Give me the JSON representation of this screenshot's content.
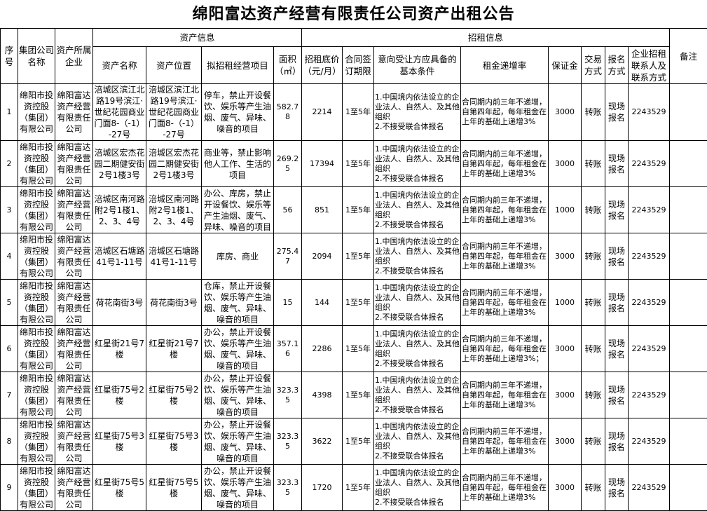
{
  "title": "绵阳富达资产经营有限责任公司资产出租公告",
  "groups": {
    "asset_info": "资产信息",
    "bid_info": "招租信息"
  },
  "headers": {
    "seq": "序号",
    "group_company": "集团公司名称",
    "owner": "资产所属企业",
    "asset_name": "资产名称",
    "asset_location": "资产位置",
    "business": "拟招租经营项目",
    "area": "面积（㎡）",
    "base_price": "招租底价（元/月）",
    "term": "合同签订期限",
    "conditions": "意向受让方应具备的基本条件",
    "increase": "租金递增率",
    "deposit": "保证金",
    "trade": "交易方式",
    "signup": "报名方式",
    "contact": "企业招租联系人及联系方式",
    "remark": "备注"
  },
  "rows": [
    {
      "seq": "1",
      "group_company": "绵阳市投资控股（集团）有限公司",
      "owner": "绵阳富达资产经营有限责任公司",
      "asset_name": "涪城区滨江北路19号滨江·世纪花园商业门面8-（-1）-27号",
      "asset_location": "涪城区滨江北路19号滨江·世纪花园商业门面8-（-1）-27号",
      "business": "停车，禁止开设餐饮、娱乐等产生油烟、废气、异味、噪音的项目",
      "area": "582.78",
      "base_price": "2214",
      "term": "1至5年",
      "conditions": "1.中国境内依法设立的企业法人、自然人、及其他组织\n2.不接受联合体报名",
      "increase": "合同期内前三年不递增，自第四年起，每年租金在上年的基础上递增3%",
      "deposit": "3000",
      "trade": "转账",
      "signup": "现场报名",
      "contact": "2243529",
      "remark": ""
    },
    {
      "seq": "2",
      "group_company": "绵阳市投资控股（集团）有限公司",
      "owner": "绵阳富达资产经营有限责任公司",
      "asset_name": "涪城区宏杰花园二期健安街2号1楼3号",
      "asset_location": "涪城区宏杰花园二期健安街2号1楼3号",
      "business": "商业等，禁止影响他人工作、生活的项目",
      "area": "269.25",
      "base_price": "17394",
      "term": "1至5年",
      "conditions": "1.中国境内依法设立的企业法人、自然人、及其他组织\n2.不接受联合体报名",
      "increase": "合同期内前三年不递增，自第四年起，每年租金在上年的基础上递增3%",
      "deposit": "3000",
      "trade": "转账",
      "signup": "现场报名",
      "contact": "2243529",
      "remark": ""
    },
    {
      "seq": "3",
      "group_company": "绵阳市投资控股（集团）有限公司",
      "owner": "绵阳富达资产经营有限责任公司",
      "asset_name": "涪城区南河路附2号1楼1、2、3、4号",
      "asset_location": "涪城区南河路附2号1楼1、2、3、4号",
      "business": "办公、库房，禁止开设餐饮、娱乐等产生油烟、废气、异味、噪音的项目",
      "area": "56",
      "base_price": "851",
      "term": "1至5年",
      "conditions": "1.中国境内依法设立的企业法人、自然人、及其他组织\n2.不接受联合体报名",
      "increase": "合同期内前三年不递增，自第四年起，每年租金在上年的基础上递增3%",
      "deposit": "1000",
      "trade": "转账",
      "signup": "现场报名",
      "contact": "2243529",
      "remark": ""
    },
    {
      "seq": "4",
      "group_company": "绵阳市投资控股（集团）有限公司",
      "owner": "绵阳富达资产经营有限责任公司",
      "asset_name": "涪城区石塘路41号1-11号",
      "asset_location": "涪城区石塘路41号1-11号",
      "business": "库房、商业",
      "area": "275.47",
      "base_price": "2094",
      "term": "1至5年",
      "conditions": "1.中国境内依法设立的企业法人、自然人、及其他组织\n2.不接受联合体报名",
      "increase": "合同期内前三年不递增，自第四年起，每年租金在上年的基础上递增3%",
      "deposit": "3000",
      "trade": "转账",
      "signup": "现场报名",
      "contact": "2243529",
      "remark": ""
    },
    {
      "seq": "5",
      "group_company": "绵阳市投资控股（集团）有限公司",
      "owner": "绵阳富达资产经营有限责任公司",
      "asset_name": "荷花南街3号",
      "asset_location": "荷花南街3号",
      "business": "仓库，禁止开设餐饮、娱乐等产生油烟、废气、异味、噪音的项目",
      "area": "15",
      "base_price": "144",
      "term": "1至5年",
      "conditions": "1.中国境内依法设立的企业法人、自然人、及其他组织\n2.不接受联合体报名",
      "increase": "合同期内前三年不递增，自第四年起，每年租金在上年的基础上递增3%",
      "deposit": "1000",
      "trade": "转账",
      "signup": "现场报名",
      "contact": "2243529",
      "remark": ""
    },
    {
      "seq": "6",
      "group_company": "绵阳市投资控股（集团）有限公司",
      "owner": "绵阳富达资产经营有限责任公司",
      "asset_name": "红星街21号7楼",
      "asset_location": "红星街21号7楼",
      "business": "办公，禁止开设餐饮、娱乐等产生油烟、废气、异味、噪音的项目",
      "area": "357.16",
      "base_price": "2286",
      "term": "1至5年",
      "conditions": "1.中国境内依法设立的企业法人、自然人、及其他组织\n2.不接受联合体报名",
      "increase": "合同期内前三年不递增，自第四年起，每年租金在上年的基础上递增3%；",
      "deposit": "3000",
      "trade": "转账",
      "signup": "现场报名",
      "contact": "2243529",
      "remark": ""
    },
    {
      "seq": "7",
      "group_company": "绵阳市投资控股（集团）有限公司",
      "owner": "绵阳富达资产经营有限责任公司",
      "asset_name": "红星街75号2楼",
      "asset_location": "红星街75号2楼",
      "business": "办公，禁止开设餐饮、娱乐等产生油烟、废气、异味、噪音的项目",
      "area": "323.35",
      "base_price": "4398",
      "term": "1至5年",
      "conditions": "1.中国境内依法设立的企业法人、自然人、及其他组织\n2.不接受联合体报名",
      "increase": "合同期内前三年不递增，自第四年起，每年租金在上年的基础上递增3%",
      "deposit": "3000",
      "trade": "转账",
      "signup": "现场报名",
      "contact": "2243529",
      "remark": ""
    },
    {
      "seq": "8",
      "group_company": "绵阳市投资控股（集团）有限公司",
      "owner": "绵阳富达资产经营有限责任公司",
      "asset_name": "红星街75号3楼",
      "asset_location": "红星街75号3楼",
      "business": "办公，禁止开设餐饮、娱乐等产生油烟、废气、异味、噪音的项目",
      "area": "323.35",
      "base_price": "3622",
      "term": "1至5年",
      "conditions": "1.中国境内依法设立的企业法人、自然人、及其他组织\n2.不接受联合体报名",
      "increase": "合同期内前三年不递增，自第四年起，每年租金在上年的基础上递增3%",
      "deposit": "3000",
      "trade": "转账",
      "signup": "现场报名",
      "contact": "2243529",
      "remark": ""
    },
    {
      "seq": "9",
      "group_company": "绵阳市投资控股（集团）有限公司",
      "owner": "绵阳富达资产经营有限责任公司",
      "asset_name": "红星街75号5楼",
      "asset_location": "红星街75号5楼",
      "business": "办公，禁止开设餐饮、娱乐等产生油烟、废气、异味、噪音的项目",
      "area": "323.35",
      "base_price": "1720",
      "term": "1至5年",
      "conditions": "1.中国境内依法设立的企业法人、自然人、及其他组织\n2.不接受联合体报名",
      "increase": "合同期内前三年不递增，自第四年起，每年租金在上年的基础上递增3%",
      "deposit": "3000",
      "trade": "转账",
      "signup": "现场报名",
      "contact": "2243529",
      "remark": ""
    }
  ]
}
